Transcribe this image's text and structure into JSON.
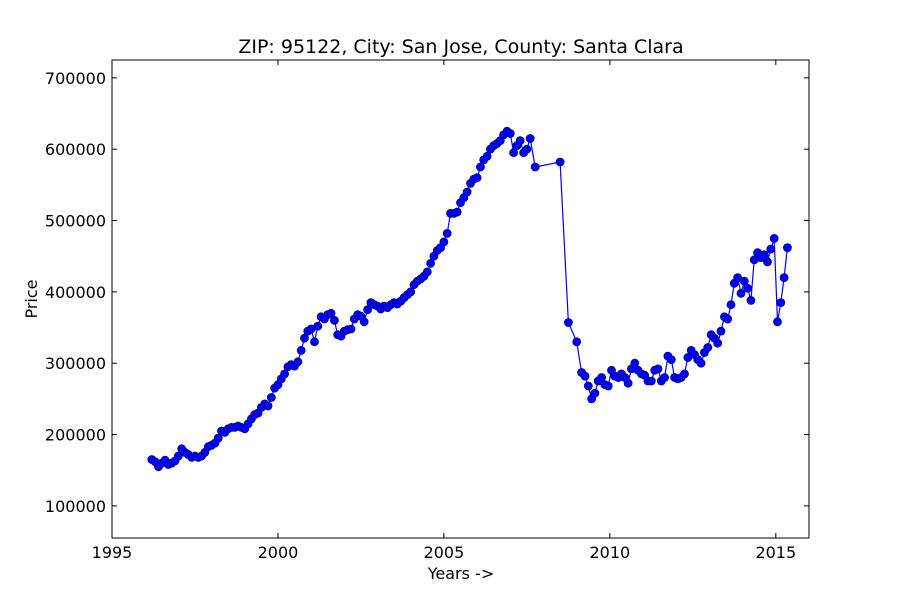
{
  "chart_data": {
    "type": "line",
    "title": "ZIP: 95122, City: San Jose, County: Santa Clara",
    "xlabel": "Years ->",
    "ylabel": "Price",
    "xlim": [
      1995,
      2016
    ],
    "ylim": [
      55000,
      725000
    ],
    "xticks": [
      1995,
      2000,
      2005,
      2010,
      2015
    ],
    "yticks": [
      100000,
      200000,
      300000,
      400000,
      500000,
      600000,
      700000
    ],
    "grid": false,
    "legend": "none",
    "colors": {
      "line": "#0000ff",
      "marker_fill": "#0000ff",
      "marker_edge": "#000080"
    },
    "series": [
      {
        "x": [
          1996.2,
          1996.3,
          1996.4,
          1996.5,
          1996.6,
          1996.7,
          1996.8,
          1996.9,
          1997.0,
          1997.1,
          1997.2,
          1997.3,
          1997.4,
          1997.5,
          1997.6,
          1997.7,
          1997.8,
          1997.9,
          1998.0,
          1998.1,
          1998.2,
          1998.3,
          1998.4,
          1998.5,
          1998.6,
          1998.7,
          1998.8,
          1998.9,
          1999.0,
          1999.1,
          1999.2,
          1999.3,
          1999.4,
          1999.5,
          1999.6,
          1999.7,
          1999.8,
          1999.9,
          2000.0,
          2000.1,
          2000.2,
          2000.3,
          2000.4,
          2000.5,
          2000.6,
          2000.7,
          2000.8,
          2000.9,
          2001.0,
          2001.1,
          2001.2,
          2001.3,
          2001.4,
          2001.5,
          2001.6,
          2001.7,
          2001.8,
          2001.9,
          2002.0,
          2002.1,
          2002.2,
          2002.3,
          2002.4,
          2002.5,
          2002.6,
          2002.7,
          2002.8,
          2002.9,
          2003.0,
          2003.1,
          2003.2,
          2003.3,
          2003.4,
          2003.5,
          2003.6,
          2003.7,
          2003.8,
          2003.9,
          2004.0,
          2004.1,
          2004.2,
          2004.3,
          2004.4,
          2004.5,
          2004.6,
          2004.7,
          2004.8,
          2004.9,
          2005.0,
          2005.1,
          2005.2,
          2005.3,
          2005.4,
          2005.5,
          2005.6,
          2005.7,
          2005.8,
          2005.9,
          2006.0,
          2006.1,
          2006.2,
          2006.3,
          2006.4,
          2006.5,
          2006.6,
          2006.7,
          2006.8,
          2006.9,
          2007.0,
          2007.1,
          2007.2,
          2007.3,
          2007.4,
          2007.5,
          2007.6,
          2007.75,
          2008.5,
          2008.75,
          2009.0,
          2009.15,
          2009.25,
          2009.35,
          2009.45,
          2009.55,
          2009.65,
          2009.75,
          2009.85,
          2009.95,
          2010.05,
          2010.15,
          2010.25,
          2010.35,
          2010.45,
          2010.55,
          2010.65,
          2010.75,
          2010.85,
          2010.95,
          2011.05,
          2011.15,
          2011.25,
          2011.35,
          2011.45,
          2011.55,
          2011.65,
          2011.75,
          2011.85,
          2011.95,
          2012.05,
          2012.15,
          2012.25,
          2012.35,
          2012.45,
          2012.55,
          2012.65,
          2012.75,
          2012.85,
          2012.95,
          2013.05,
          2013.15,
          2013.25,
          2013.35,
          2013.45,
          2013.55,
          2013.65,
          2013.75,
          2013.85,
          2013.95,
          2014.05,
          2014.15,
          2014.25,
          2014.35,
          2014.45,
          2014.55,
          2014.65,
          2014.75,
          2014.85,
          2014.95,
          2015.05,
          2015.15,
          2015.25,
          2015.35
        ],
        "values": [
          165000,
          162000,
          155000,
          160000,
          164000,
          158000,
          160000,
          163000,
          170000,
          180000,
          175000,
          172000,
          168000,
          170000,
          168000,
          170000,
          175000,
          183000,
          185000,
          188000,
          195000,
          205000,
          203000,
          208000,
          210000,
          210000,
          212000,
          210000,
          208000,
          215000,
          222000,
          228000,
          230000,
          238000,
          243000,
          240000,
          252000,
          265000,
          270000,
          278000,
          285000,
          295000,
          298000,
          296000,
          302000,
          318000,
          335000,
          345000,
          348000,
          330000,
          352000,
          365000,
          362000,
          368000,
          370000,
          360000,
          340000,
          338000,
          345000,
          347000,
          348000,
          362000,
          368000,
          366000,
          358000,
          375000,
          385000,
          382000,
          380000,
          376000,
          380000,
          378000,
          382000,
          385000,
          383000,
          387000,
          392000,
          396000,
          400000,
          410000,
          415000,
          418000,
          422000,
          428000,
          440000,
          450000,
          458000,
          462000,
          470000,
          482000,
          510000,
          510000,
          512000,
          525000,
          532000,
          540000,
          552000,
          558000,
          560000,
          575000,
          585000,
          590000,
          600000,
          605000,
          608000,
          612000,
          620000,
          625000,
          622000,
          595000,
          605000,
          612000,
          595000,
          600000,
          615000,
          575000,
          582000,
          357000,
          330000,
          287000,
          282000,
          268000,
          250000,
          258000,
          275000,
          280000,
          270000,
          268000,
          290000,
          282000,
          280000,
          285000,
          280000,
          272000,
          292000,
          300000,
          290000,
          285000,
          283000,
          275000,
          275000,
          290000,
          292000,
          275000,
          280000,
          310000,
          305000,
          280000,
          278000,
          280000,
          285000,
          308000,
          318000,
          312000,
          305000,
          300000,
          315000,
          322000,
          340000,
          335000,
          328000,
          345000,
          365000,
          362000,
          382000,
          412000,
          420000,
          398000,
          415000,
          405000,
          388000,
          445000,
          455000,
          448000,
          452000,
          442000,
          460000,
          475000,
          358000,
          385000,
          420000,
          462000
        ]
      }
    ]
  }
}
